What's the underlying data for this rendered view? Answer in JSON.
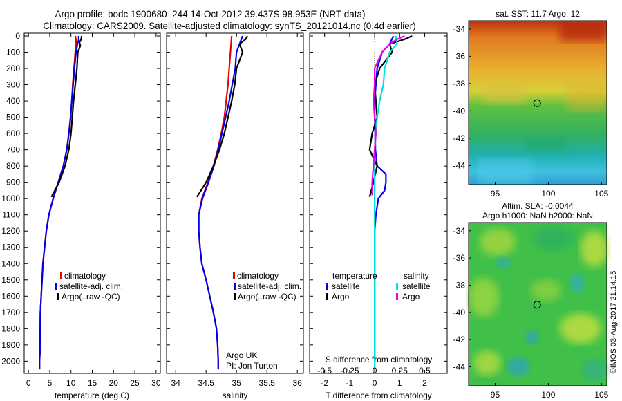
{
  "header": {
    "line1": "Argo profile: bodc 1900680_244 14-Oct-2012 39.437S 98.953E (NRT data)",
    "line2": "Climatology: CARS2009. Satellite-adjusted climatology: synTS_20121014.nc (0.4d earlier)"
  },
  "credit": "©IMOS 03-Aug-2017 21:14:15",
  "colors": {
    "climatology": "#ee0000",
    "satellite": "#0000ee",
    "argo": "#000000",
    "salinity_satellite": "#00e0e0",
    "salinity_argo": "#ee00ee"
  },
  "chart_data": [
    {
      "type": "line",
      "panel": "temperature",
      "xlabel": "temperature (deg C)",
      "xlim": [
        -1,
        31
      ],
      "xticks": [
        0,
        5,
        10,
        15,
        20,
        25,
        30
      ],
      "ylim": [
        2075,
        0
      ],
      "yticks": [
        0,
        100,
        200,
        300,
        400,
        500,
        600,
        700,
        800,
        900,
        1000,
        1100,
        1200,
        1300,
        1400,
        1500,
        1600,
        1700,
        1800,
        1900,
        2000
      ],
      "legend": [
        "climatology",
        "satellite-adj. clim.",
        "Argo(..raw -QC)"
      ],
      "series": [
        {
          "name": "climatology",
          "color": "#ee0000",
          "x": [
            11.0,
            11.2,
            11.2,
            11.0,
            10.7,
            10.4,
            10.2,
            9.9,
            9.7,
            9.5,
            9.0,
            8.2,
            7.0,
            5.8,
            4.8,
            4.2,
            3.8,
            3.4,
            3.2,
            3.0,
            2.8,
            2.75,
            2.7,
            2.7,
            2.6,
            2.6
          ],
          "y": [
            0,
            25,
            50,
            100,
            200,
            300,
            400,
            500,
            550,
            600,
            700,
            800,
            900,
            1000,
            1100,
            1200,
            1300,
            1400,
            1500,
            1600,
            1700,
            1800,
            1900,
            1950,
            2000,
            2050
          ]
        },
        {
          "name": "satellite-adj. clim.",
          "color": "#0000ee",
          "x": [
            11.8,
            11.8,
            11.5,
            11.2,
            10.8,
            10.5,
            10.2,
            9.9,
            9.7,
            9.5,
            9.0,
            8.2,
            7.0,
            5.8,
            4.8,
            4.2,
            3.8,
            3.4,
            3.2,
            3.0,
            2.8,
            2.75,
            2.7,
            2.7,
            2.6,
            2.6
          ],
          "y": [
            0,
            25,
            50,
            100,
            200,
            300,
            400,
            500,
            550,
            600,
            700,
            800,
            900,
            1000,
            1100,
            1200,
            1300,
            1400,
            1500,
            1600,
            1700,
            1800,
            1900,
            1950,
            2000,
            2050
          ]
        },
        {
          "name": "Argo(..raw -QC)",
          "color": "#000000",
          "x": [
            12.5,
            12.4,
            12.0,
            12.2,
            11.6,
            11.4,
            11.0,
            10.6,
            10.3,
            10.0,
            9.5,
            8.6,
            7.2,
            5.4
          ],
          "y": [
            0,
            20,
            40,
            60,
            100,
            200,
            300,
            400,
            500,
            600,
            700,
            800,
            900,
            990
          ]
        }
      ]
    },
    {
      "type": "line",
      "panel": "salinity",
      "xlabel": "salinity",
      "xlim": [
        33.85,
        36.1
      ],
      "xticks": [
        34,
        34.5,
        35,
        35.5,
        36
      ],
      "ylim": [
        2075,
        0
      ],
      "legend": [
        "climatology",
        "satellite-adj. clim.",
        "Argo(..raw -QC)"
      ],
      "annotation": [
        "Argo UK",
        "PI: Jon Turton"
      ],
      "series": [
        {
          "name": "climatology",
          "color": "#ee0000",
          "x": [
            34.92,
            34.91,
            34.9,
            34.88,
            34.86,
            34.83,
            34.8,
            34.75,
            34.69,
            34.62,
            34.53,
            34.43,
            34.38,
            34.38,
            34.4,
            34.43,
            34.5,
            34.56,
            34.62,
            34.67,
            34.69,
            34.7,
            34.7
          ],
          "y": [
            0,
            50,
            100,
            200,
            300,
            400,
            500,
            600,
            700,
            800,
            900,
            1000,
            1100,
            1200,
            1300,
            1400,
            1500,
            1600,
            1700,
            1800,
            1900,
            2000,
            2050
          ]
        },
        {
          "name": "satellite-adj. clim.",
          "color": "#0000ee",
          "x": [
            35.1,
            35.05,
            35.0,
            34.98,
            34.93,
            34.88,
            34.82,
            34.76,
            34.7,
            34.63,
            34.54,
            34.44,
            34.38,
            34.38,
            34.4,
            34.43,
            34.5,
            34.56,
            34.62,
            34.67,
            34.69,
            34.7,
            34.7
          ],
          "y": [
            0,
            50,
            100,
            200,
            300,
            400,
            500,
            600,
            700,
            800,
            900,
            1000,
            1100,
            1200,
            1300,
            1400,
            1500,
            1600,
            1700,
            1800,
            1900,
            2000,
            2050
          ]
        },
        {
          "name": "Argo(..raw -QC)",
          "color": "#000000",
          "x": [
            35.18,
            35.15,
            35.05,
            35.1,
            35.0,
            34.97,
            34.92,
            34.86,
            34.8,
            34.72,
            34.62,
            34.5,
            34.35
          ],
          "y": [
            0,
            20,
            50,
            100,
            200,
            300,
            400,
            500,
            600,
            700,
            800,
            900,
            990
          ]
        }
      ]
    },
    {
      "type": "line",
      "panel": "difference",
      "xlabel": "T difference from climatology",
      "xlabel_top": "S difference from climatology",
      "xlim": [
        -2.6,
        2.9
      ],
      "xticks": [
        -2,
        -1,
        0,
        1,
        2
      ],
      "xticks_s": [
        -0.5,
        -0.25,
        0,
        0.25,
        0.5
      ],
      "ylim": [
        2075,
        0
      ],
      "legend_titles": [
        "temperature",
        "salinity"
      ],
      "legend": [
        "satellite",
        "Argo",
        "satellite",
        "Argo"
      ],
      "series": [
        {
          "name": "satellite",
          "color": "#0000ee",
          "x": [
            0.75,
            0.6,
            0.3,
            0.1,
            0.05,
            0.0,
            0.0,
            0.02,
            0.03,
            0.1,
            0.45,
            0.45,
            0.4,
            0.15,
            0.05,
            0.0,
            0.0,
            0.0,
            0.0,
            0.0,
            0.0,
            0.0,
            0.0
          ],
          "y": [
            0,
            50,
            100,
            200,
            300,
            400,
            500,
            600,
            700,
            800,
            850,
            900,
            950,
            1000,
            1100,
            1200,
            1300,
            1400,
            1500,
            1600,
            1700,
            1800,
            2000
          ]
        },
        {
          "name": "Argo",
          "color": "#000000",
          "x": [
            1.5,
            1.2,
            0.6,
            0.7,
            0.2,
            0.0,
            0.05,
            0.1,
            -0.1,
            -0.2,
            0.1,
            -0.05,
            -0.2
          ],
          "y": [
            0,
            20,
            50,
            100,
            200,
            300,
            400,
            500,
            600,
            700,
            800,
            900,
            990
          ]
        },
        {
          "name": "satellite",
          "color": "#00e0e0",
          "x": [
            0.85,
            0.9,
            0.6,
            0.4,
            0.35,
            0.2,
            0.1,
            0.05,
            0.0,
            0.0,
            0.0,
            0.0,
            0.0,
            0.0,
            0.0,
            0.0
          ],
          "y": [
            0,
            50,
            100,
            200,
            300,
            400,
            500,
            600,
            700,
            800,
            900,
            1000,
            1200,
            1400,
            1700,
            2050
          ]
        },
        {
          "name": "Argo",
          "color": "#ee00ee",
          "x": [
            1.2,
            0.9,
            0.6,
            0.3,
            0.0,
            0.0,
            -0.05,
            0.0,
            0.05,
            0.0,
            -0.05,
            -0.1,
            -0.1
          ],
          "y": [
            0,
            20,
            50,
            100,
            200,
            300,
            400,
            500,
            600,
            700,
            800,
            900,
            980
          ]
        }
      ]
    }
  ],
  "maps": [
    {
      "title": "sat. SST: 11.7 Argo: 12",
      "xticks": [
        95,
        100,
        105
      ],
      "yticks": [
        -34,
        -36,
        -38,
        -40,
        -42,
        -44
      ],
      "xlim": [
        92.5,
        105.5
      ],
      "ylim": [
        -45.4,
        -33.4
      ],
      "marker": {
        "lon": 98.95,
        "lat": -39.44
      }
    },
    {
      "title_lines": [
        "Altim. SLA: -0.0044",
        "Argo h1000: NaN h2000: NaN"
      ],
      "xticks": [
        95,
        100,
        105
      ],
      "yticks": [
        -34,
        -36,
        -38,
        -40,
        -42,
        -44
      ],
      "xlim": [
        92.5,
        105.5
      ],
      "ylim": [
        -45.4,
        -33.4
      ],
      "marker": {
        "lon": 98.95,
        "lat": -39.44
      }
    }
  ]
}
